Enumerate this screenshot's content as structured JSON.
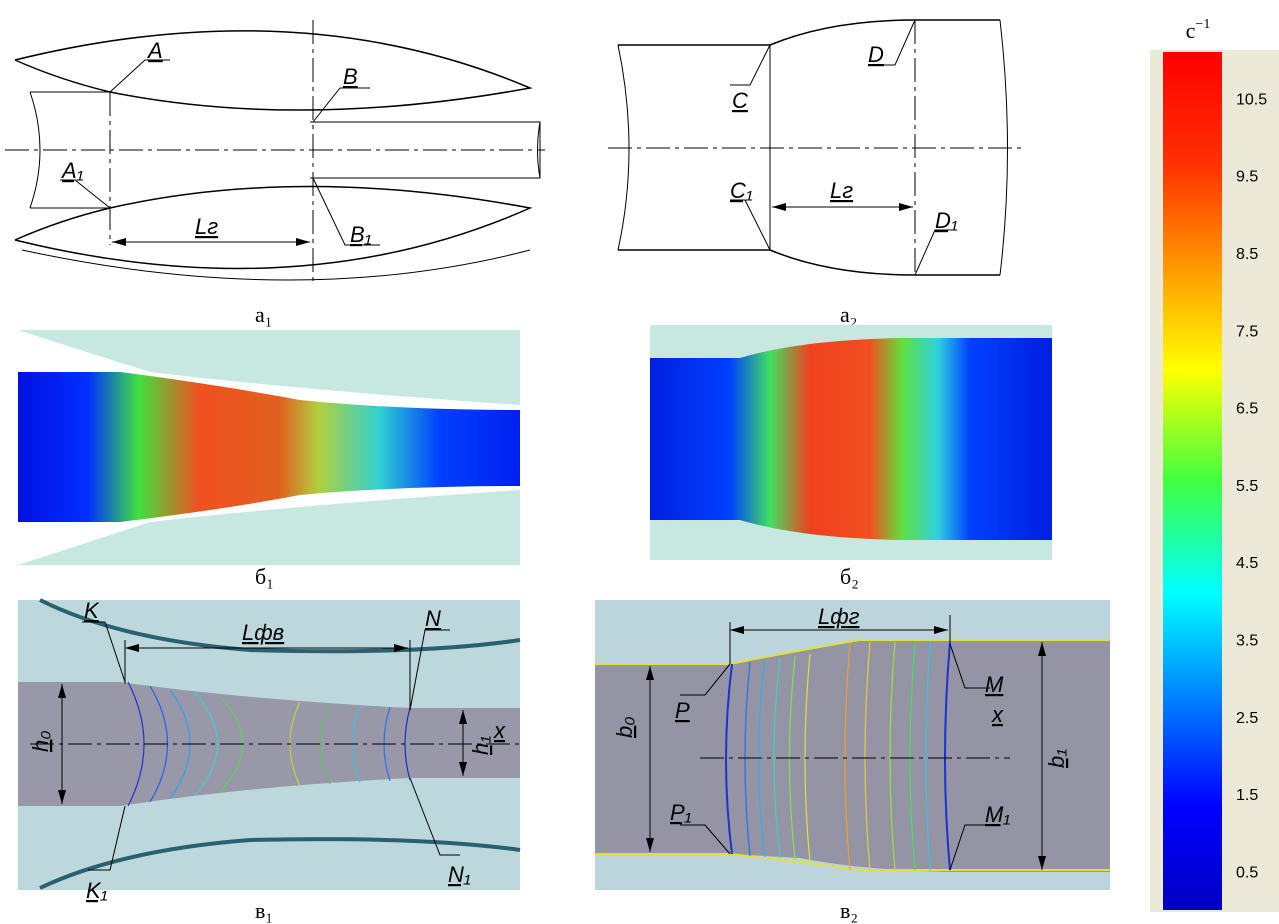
{
  "panel_a1": {
    "labels": {
      "a": "A",
      "b": "B",
      "a1": "A₁",
      "b1": "B₁",
      "length": "Lг"
    },
    "caption": "а₁"
  },
  "panel_a2": {
    "labels": {
      "c": "C",
      "d": "D",
      "c1": "C₁",
      "d1": "D₁",
      "length": "Lг"
    },
    "caption": "а₂"
  },
  "panel_b1": {
    "caption": "б₁"
  },
  "panel_b2": {
    "caption": "б₂"
  },
  "panel_v1": {
    "labels": {
      "k": "K",
      "n": "N",
      "k1": "K₁",
      "n1": "N₁",
      "length": "Lфв",
      "h0": "h₀",
      "h1": "h₁",
      "x": "x"
    },
    "caption": "в₁"
  },
  "panel_v2": {
    "labels": {
      "p": "P",
      "m": "M",
      "p1": "P₁",
      "m1": "M₁",
      "length": "Lфг",
      "b0": "b₀",
      "b1": "b₁",
      "x": "x"
    },
    "caption": "в₂"
  },
  "colorbar": {
    "unit": "c",
    "unit_power": "−1",
    "lim": [
      0,
      11.1
    ],
    "ticks": [
      0.5,
      1.5,
      2.5,
      3.5,
      4.5,
      5.5,
      6.5,
      7.5,
      8.5,
      9.5,
      10.5
    ]
  }
}
